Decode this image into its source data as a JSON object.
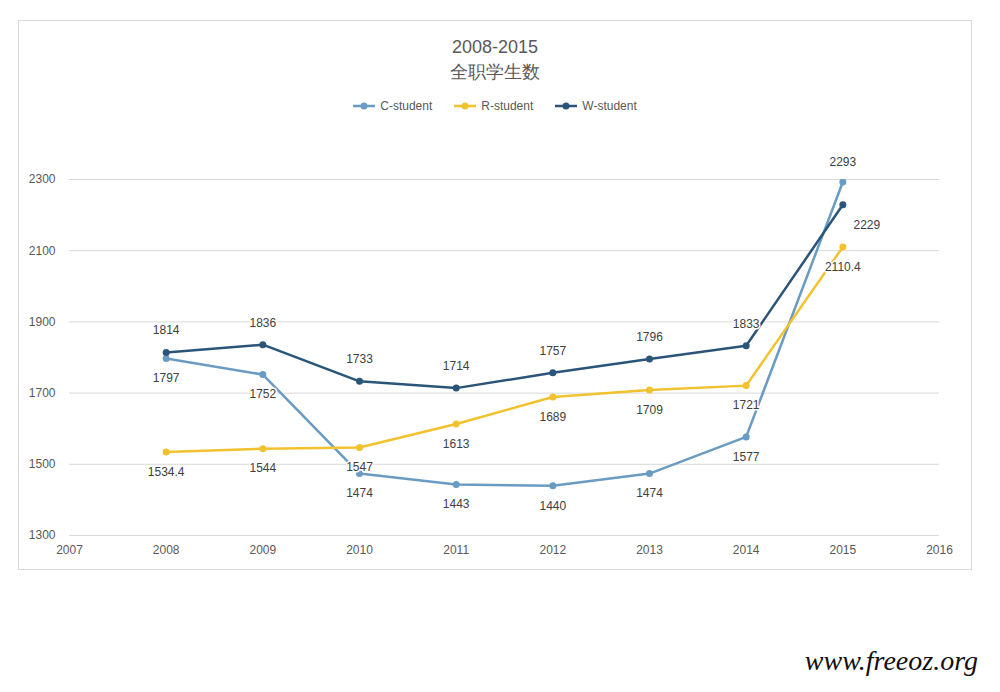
{
  "chart_data": {
    "type": "line",
    "title": "2008-2015",
    "subtitle": "全职学生数",
    "x": [
      2008,
      2009,
      2010,
      2011,
      2012,
      2013,
      2014,
      2015
    ],
    "series": [
      {
        "name": "C-student",
        "color": "#6a9bc3",
        "values": [
          1797,
          1752,
          1474,
          1443,
          1440,
          1474,
          1577,
          2293
        ]
      },
      {
        "name": "R-student",
        "color": "#f2c12e",
        "values": [
          1534.4,
          1544,
          1547,
          1613,
          1689,
          1709,
          1721,
          2110.4
        ]
      },
      {
        "name": "W-student",
        "color": "#2a5578",
        "values": [
          1814,
          1836,
          1733,
          1714,
          1757,
          1796,
          1833,
          2229
        ]
      }
    ],
    "xlim": [
      2007,
      2016
    ],
    "xticks": [
      2007,
      2008,
      2009,
      2010,
      2011,
      2012,
      2013,
      2014,
      2015,
      2016
    ],
    "ylim": [
      1300,
      2300
    ],
    "yticks": [
      1300,
      1500,
      1700,
      1900,
      2100,
      2300
    ],
    "grid": true,
    "legend": "top",
    "data_labels": true,
    "marker": "circle",
    "annotations": [
      "www.freeoz.org"
    ]
  }
}
